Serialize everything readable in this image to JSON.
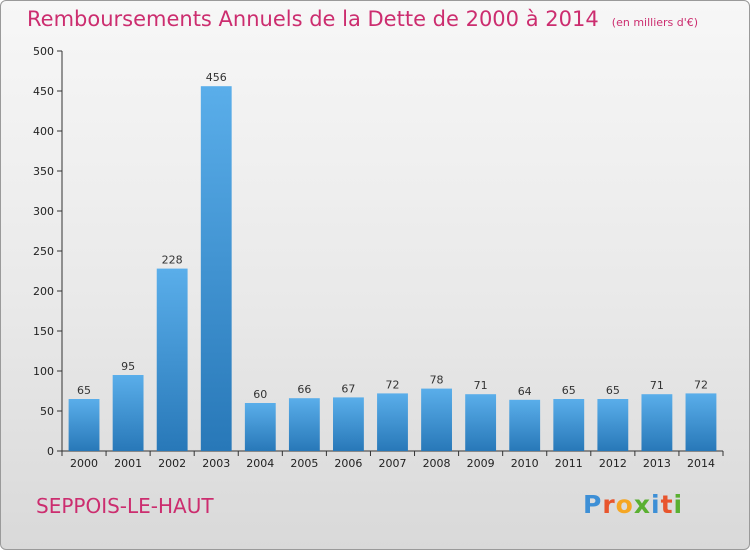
{
  "header": {
    "title": "Remboursements Annuels de la Dette de 2000 à 2014",
    "unit": "(en milliers d'€)"
  },
  "footer": {
    "commune": "SEPPOIS-LE-HAUT",
    "brand": "Proxiti",
    "brand_colors": [
      "#3d8fd6",
      "#e8552d",
      "#f5a623",
      "#5ab031",
      "#3d8fd6",
      "#e8552d",
      "#5ab031"
    ]
  },
  "colors": {
    "title": "#cc2d6f",
    "bar_top": "#5aaeea",
    "bar_bottom": "#2878b8"
  },
  "chart_data": {
    "type": "bar",
    "categories": [
      "2000",
      "2001",
      "2002",
      "2003",
      "2004",
      "2005",
      "2006",
      "2007",
      "2008",
      "2009",
      "2010",
      "2011",
      "2012",
      "2013",
      "2014"
    ],
    "values": [
      65,
      95,
      228,
      456,
      60,
      66,
      67,
      72,
      78,
      71,
      64,
      65,
      65,
      71,
      72
    ],
    "ylim": [
      0,
      500
    ],
    "yticks": [
      0,
      50,
      100,
      150,
      200,
      250,
      300,
      350,
      400,
      450,
      500
    ],
    "grid": false,
    "show_data_labels": true
  }
}
